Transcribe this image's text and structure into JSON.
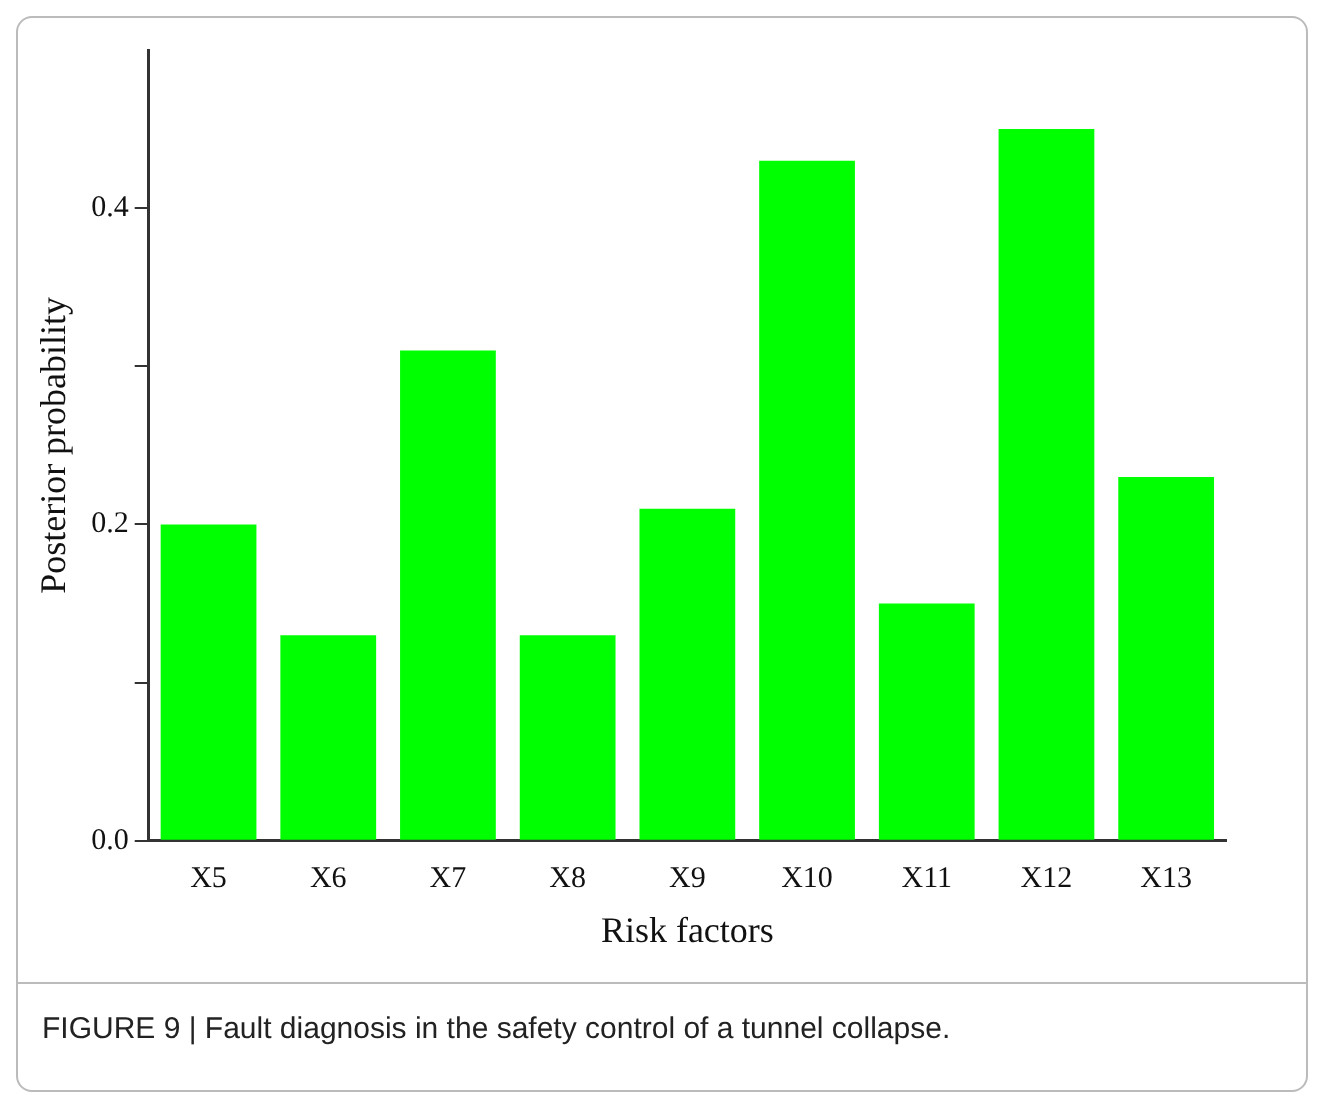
{
  "chart_data": {
    "type": "bar",
    "xlabel": "Risk factors",
    "ylabel": "Posterior probability",
    "categories": [
      "X5",
      "X6",
      "X7",
      "X8",
      "X9",
      "X10",
      "X11",
      "X12",
      "X13"
    ],
    "values": [
      0.2,
      0.13,
      0.31,
      0.13,
      0.21,
      0.43,
      0.15,
      0.45,
      0.23
    ],
    "color": "#00ff00",
    "ylim": [
      0,
      0.5
    ],
    "yticks": [
      {
        "value": 0,
        "label": "0.0"
      },
      {
        "value": 0.1,
        "label": null
      },
      {
        "value": 0.2,
        "label": "0.2"
      },
      {
        "value": 0.3,
        "label": null
      },
      {
        "value": 0.4,
        "label": "0.4"
      }
    ],
    "grid": false,
    "annotations": [
      "FIGURE 9 | Fault diagnosis in the safety control of a tunnel collapse."
    ]
  }
}
